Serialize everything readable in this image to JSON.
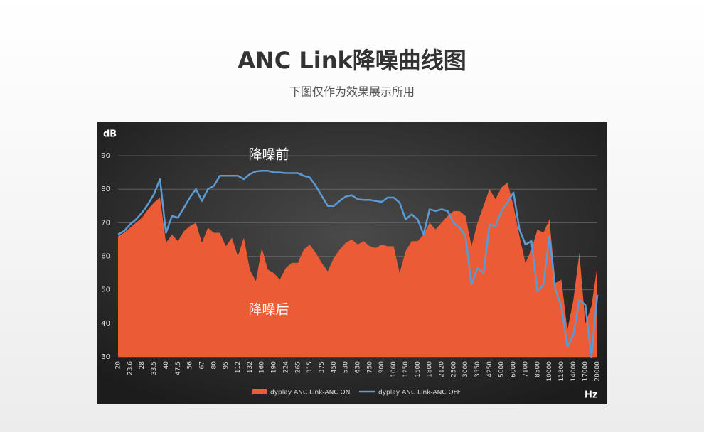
{
  "chart_data": {
    "type": "area_line",
    "title": "ANC Link降噪曲线图",
    "subtitle": "下图仅作为效果展示所用",
    "y_label": "dB",
    "x_label": "Hz",
    "annotations": [
      "降噪前",
      "降噪后"
    ],
    "categories": [
      "20",
      null,
      "23.6",
      null,
      "28",
      null,
      "33.5",
      null,
      "40",
      null,
      "47.5",
      null,
      "56",
      null,
      "67",
      null,
      "80",
      null,
      "95",
      null,
      "112",
      null,
      "132",
      null,
      "160",
      null,
      "190",
      null,
      "224",
      null,
      "265",
      null,
      "315",
      null,
      "375",
      null,
      "450",
      null,
      "530",
      null,
      "630",
      null,
      "750",
      null,
      "900",
      null,
      "1060",
      null,
      "1250",
      null,
      "1500",
      null,
      "1800",
      null,
      "2120",
      null,
      "2500",
      null,
      "3000",
      null,
      "3550",
      null,
      "4250",
      null,
      "5000",
      null,
      "6000",
      null,
      "7100",
      null,
      "8500",
      null,
      "10000",
      null,
      "11800",
      null,
      "14000",
      null,
      "17000",
      null,
      "20000"
    ],
    "series": [
      {
        "name": "dyplay ANC Link-ANC ON",
        "color": "#ea5b36",
        "values": [
          66,
          67,
          68.5,
          70,
          71.5,
          74,
          76,
          77.5,
          64,
          66.5,
          64.5,
          67.5,
          69,
          70,
          64,
          68.5,
          67,
          67,
          63,
          65.5,
          60,
          65.5,
          56,
          52.5,
          62.5,
          56,
          55,
          53,
          56.5,
          58,
          58,
          62,
          63.5,
          61,
          58,
          55.5,
          59.5,
          62,
          64,
          65,
          63.5,
          64.5,
          63,
          62.5,
          63.5,
          63,
          63,
          55,
          61.5,
          64.5,
          64.5,
          66.5,
          70,
          68,
          70,
          72,
          73.5,
          73.5,
          72,
          63,
          70,
          75,
          80,
          77,
          80.5,
          82,
          75,
          66,
          58,
          62,
          68,
          67,
          71,
          52,
          53,
          38,
          47,
          61,
          40,
          45,
          57
        ]
      },
      {
        "name": "dyplay ANC Link-ANC OFF",
        "color": "#5b9bd5",
        "values": [
          66.5,
          67.5,
          69.5,
          71,
          73,
          75.5,
          78.5,
          83,
          67,
          72,
          71.5,
          74.5,
          77.5,
          80,
          76.5,
          80,
          81,
          84,
          84,
          84,
          84,
          83,
          84.5,
          85.3,
          85.5,
          85.5,
          85,
          85,
          84.8,
          84.8,
          84.8,
          84,
          83.5,
          81,
          78,
          75,
          75,
          76.5,
          77.8,
          78.2,
          77,
          76.8,
          76.8,
          76.5,
          76.2,
          77.5,
          77.5,
          76,
          71,
          72.5,
          71,
          66.5,
          74,
          73.5,
          74,
          73.5,
          70,
          68.5,
          66,
          51.5,
          56.5,
          55,
          69.5,
          69,
          73.5,
          76,
          79,
          68,
          63.5,
          64.5,
          49.5,
          51.5,
          66,
          50,
          45,
          33,
          36.5,
          47,
          45.5,
          30,
          48.5
        ]
      }
    ],
    "ylim": [
      30,
      90
    ],
    "yticks": [
      30,
      40,
      50,
      60,
      70,
      80,
      90
    ],
    "grid": true
  }
}
